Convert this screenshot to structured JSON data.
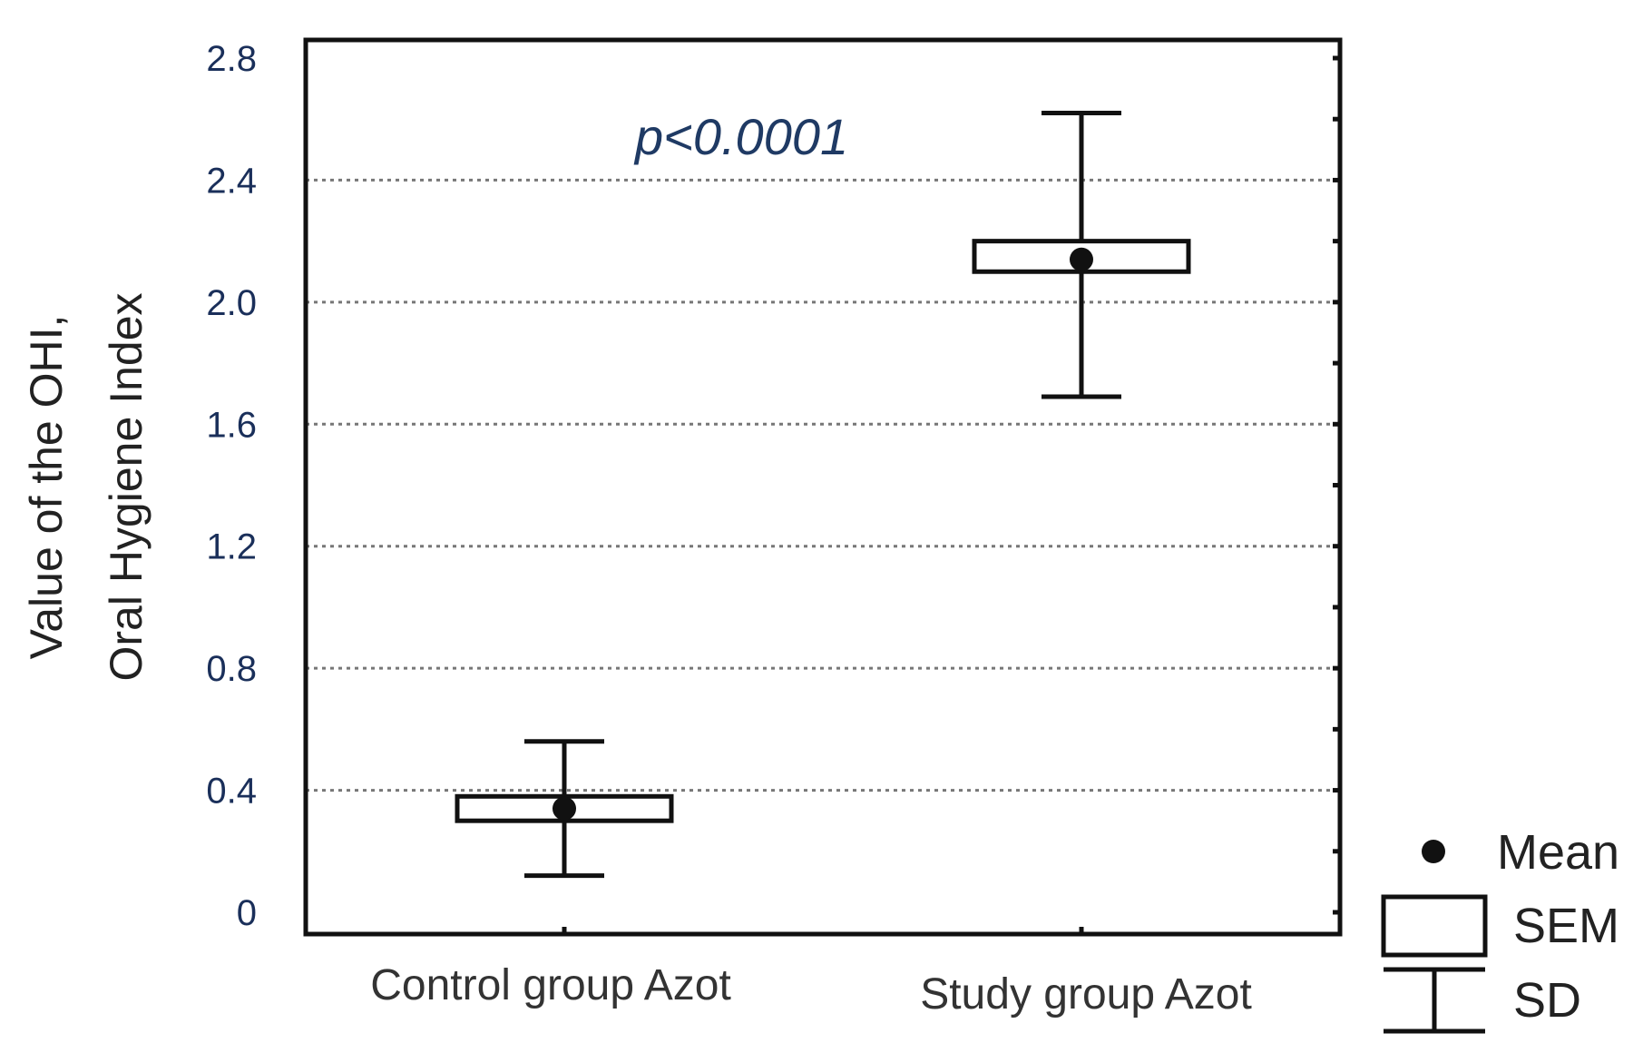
{
  "chart_data": {
    "type": "box",
    "categories": [
      "Control group Azot",
      "Study group Azot"
    ],
    "series": [
      {
        "name": "Mean",
        "values": [
          0.34,
          2.14
        ]
      }
    ],
    "sem_range": [
      [
        0.3,
        0.38
      ],
      [
        2.1,
        2.2
      ]
    ],
    "sd_range": [
      [
        0.12,
        0.56
      ],
      [
        1.69,
        2.62
      ]
    ],
    "ylabel_lines": [
      "Value of the OHI,",
      "Oral Hygiene Index"
    ],
    "xlabel": "",
    "y_ticks": [
      "0",
      "0.4",
      "0.8",
      "1.2",
      "1.6",
      "2.0",
      "2.4",
      "2.8"
    ],
    "y_tick_values": [
      0,
      0.4,
      0.8,
      1.2,
      1.6,
      2.0,
      2.4,
      2.8
    ],
    "ylim": [
      0,
      2.8
    ],
    "grid": "horizontal dotted",
    "annotation": "p<0.0001",
    "legend": {
      "placement": "bottom-right outside",
      "items": [
        {
          "symbol": "dot",
          "label": "Mean"
        },
        {
          "symbol": "box",
          "label": "SEM"
        },
        {
          "symbol": "whisker",
          "label": "SD"
        }
      ]
    },
    "colors": {
      "tick_text": "#1a2f5a",
      "annotation_text": "#1f3a64",
      "marks": "#111111"
    }
  }
}
